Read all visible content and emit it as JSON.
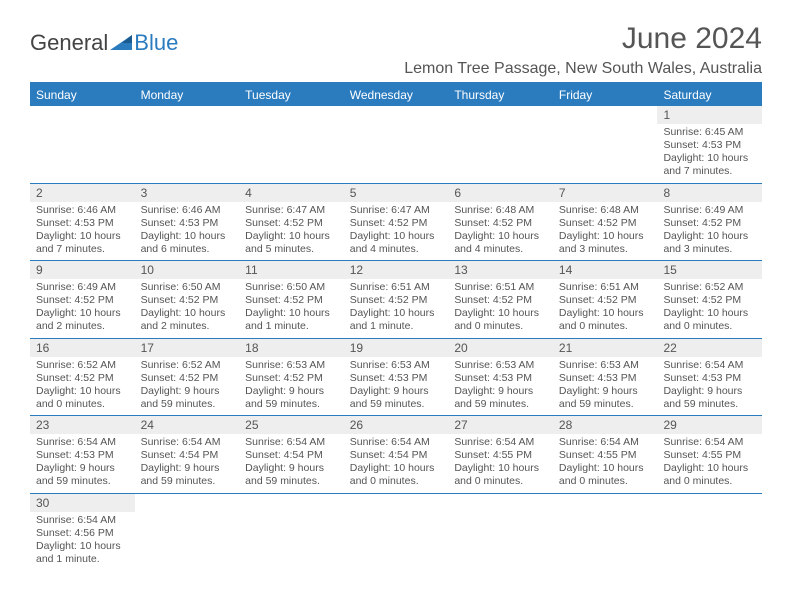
{
  "brand": {
    "part1": "General",
    "part2": "Blue",
    "logo_color": "#2b7bbf",
    "text_color": "#444444"
  },
  "title": "June 2024",
  "location": "Lemon Tree Passage, New South Wales, Australia",
  "colors": {
    "header_bg": "#2b7bbf",
    "header_text": "#ffffff",
    "daynum_bg": "#eeeeee",
    "body_text": "#555555",
    "rule": "#2b7bbf"
  },
  "weekdays": [
    "Sunday",
    "Monday",
    "Tuesday",
    "Wednesday",
    "Thursday",
    "Friday",
    "Saturday"
  ],
  "weeks": [
    [
      {
        "n": "",
        "sr": "",
        "ss": "",
        "dl1": "",
        "dl2": ""
      },
      {
        "n": "",
        "sr": "",
        "ss": "",
        "dl1": "",
        "dl2": ""
      },
      {
        "n": "",
        "sr": "",
        "ss": "",
        "dl1": "",
        "dl2": ""
      },
      {
        "n": "",
        "sr": "",
        "ss": "",
        "dl1": "",
        "dl2": ""
      },
      {
        "n": "",
        "sr": "",
        "ss": "",
        "dl1": "",
        "dl2": ""
      },
      {
        "n": "",
        "sr": "",
        "ss": "",
        "dl1": "",
        "dl2": ""
      },
      {
        "n": "1",
        "sr": "Sunrise: 6:45 AM",
        "ss": "Sunset: 4:53 PM",
        "dl1": "Daylight: 10 hours",
        "dl2": "and 7 minutes."
      }
    ],
    [
      {
        "n": "2",
        "sr": "Sunrise: 6:46 AM",
        "ss": "Sunset: 4:53 PM",
        "dl1": "Daylight: 10 hours",
        "dl2": "and 7 minutes."
      },
      {
        "n": "3",
        "sr": "Sunrise: 6:46 AM",
        "ss": "Sunset: 4:53 PM",
        "dl1": "Daylight: 10 hours",
        "dl2": "and 6 minutes."
      },
      {
        "n": "4",
        "sr": "Sunrise: 6:47 AM",
        "ss": "Sunset: 4:52 PM",
        "dl1": "Daylight: 10 hours",
        "dl2": "and 5 minutes."
      },
      {
        "n": "5",
        "sr": "Sunrise: 6:47 AM",
        "ss": "Sunset: 4:52 PM",
        "dl1": "Daylight: 10 hours",
        "dl2": "and 4 minutes."
      },
      {
        "n": "6",
        "sr": "Sunrise: 6:48 AM",
        "ss": "Sunset: 4:52 PM",
        "dl1": "Daylight: 10 hours",
        "dl2": "and 4 minutes."
      },
      {
        "n": "7",
        "sr": "Sunrise: 6:48 AM",
        "ss": "Sunset: 4:52 PM",
        "dl1": "Daylight: 10 hours",
        "dl2": "and 3 minutes."
      },
      {
        "n": "8",
        "sr": "Sunrise: 6:49 AM",
        "ss": "Sunset: 4:52 PM",
        "dl1": "Daylight: 10 hours",
        "dl2": "and 3 minutes."
      }
    ],
    [
      {
        "n": "9",
        "sr": "Sunrise: 6:49 AM",
        "ss": "Sunset: 4:52 PM",
        "dl1": "Daylight: 10 hours",
        "dl2": "and 2 minutes."
      },
      {
        "n": "10",
        "sr": "Sunrise: 6:50 AM",
        "ss": "Sunset: 4:52 PM",
        "dl1": "Daylight: 10 hours",
        "dl2": "and 2 minutes."
      },
      {
        "n": "11",
        "sr": "Sunrise: 6:50 AM",
        "ss": "Sunset: 4:52 PM",
        "dl1": "Daylight: 10 hours",
        "dl2": "and 1 minute."
      },
      {
        "n": "12",
        "sr": "Sunrise: 6:51 AM",
        "ss": "Sunset: 4:52 PM",
        "dl1": "Daylight: 10 hours",
        "dl2": "and 1 minute."
      },
      {
        "n": "13",
        "sr": "Sunrise: 6:51 AM",
        "ss": "Sunset: 4:52 PM",
        "dl1": "Daylight: 10 hours",
        "dl2": "and 0 minutes."
      },
      {
        "n": "14",
        "sr": "Sunrise: 6:51 AM",
        "ss": "Sunset: 4:52 PM",
        "dl1": "Daylight: 10 hours",
        "dl2": "and 0 minutes."
      },
      {
        "n": "15",
        "sr": "Sunrise: 6:52 AM",
        "ss": "Sunset: 4:52 PM",
        "dl1": "Daylight: 10 hours",
        "dl2": "and 0 minutes."
      }
    ],
    [
      {
        "n": "16",
        "sr": "Sunrise: 6:52 AM",
        "ss": "Sunset: 4:52 PM",
        "dl1": "Daylight: 10 hours",
        "dl2": "and 0 minutes."
      },
      {
        "n": "17",
        "sr": "Sunrise: 6:52 AM",
        "ss": "Sunset: 4:52 PM",
        "dl1": "Daylight: 9 hours",
        "dl2": "and 59 minutes."
      },
      {
        "n": "18",
        "sr": "Sunrise: 6:53 AM",
        "ss": "Sunset: 4:52 PM",
        "dl1": "Daylight: 9 hours",
        "dl2": "and 59 minutes."
      },
      {
        "n": "19",
        "sr": "Sunrise: 6:53 AM",
        "ss": "Sunset: 4:53 PM",
        "dl1": "Daylight: 9 hours",
        "dl2": "and 59 minutes."
      },
      {
        "n": "20",
        "sr": "Sunrise: 6:53 AM",
        "ss": "Sunset: 4:53 PM",
        "dl1": "Daylight: 9 hours",
        "dl2": "and 59 minutes."
      },
      {
        "n": "21",
        "sr": "Sunrise: 6:53 AM",
        "ss": "Sunset: 4:53 PM",
        "dl1": "Daylight: 9 hours",
        "dl2": "and 59 minutes."
      },
      {
        "n": "22",
        "sr": "Sunrise: 6:54 AM",
        "ss": "Sunset: 4:53 PM",
        "dl1": "Daylight: 9 hours",
        "dl2": "and 59 minutes."
      }
    ],
    [
      {
        "n": "23",
        "sr": "Sunrise: 6:54 AM",
        "ss": "Sunset: 4:53 PM",
        "dl1": "Daylight: 9 hours",
        "dl2": "and 59 minutes."
      },
      {
        "n": "24",
        "sr": "Sunrise: 6:54 AM",
        "ss": "Sunset: 4:54 PM",
        "dl1": "Daylight: 9 hours",
        "dl2": "and 59 minutes."
      },
      {
        "n": "25",
        "sr": "Sunrise: 6:54 AM",
        "ss": "Sunset: 4:54 PM",
        "dl1": "Daylight: 9 hours",
        "dl2": "and 59 minutes."
      },
      {
        "n": "26",
        "sr": "Sunrise: 6:54 AM",
        "ss": "Sunset: 4:54 PM",
        "dl1": "Daylight: 10 hours",
        "dl2": "and 0 minutes."
      },
      {
        "n": "27",
        "sr": "Sunrise: 6:54 AM",
        "ss": "Sunset: 4:55 PM",
        "dl1": "Daylight: 10 hours",
        "dl2": "and 0 minutes."
      },
      {
        "n": "28",
        "sr": "Sunrise: 6:54 AM",
        "ss": "Sunset: 4:55 PM",
        "dl1": "Daylight: 10 hours",
        "dl2": "and 0 minutes."
      },
      {
        "n": "29",
        "sr": "Sunrise: 6:54 AM",
        "ss": "Sunset: 4:55 PM",
        "dl1": "Daylight: 10 hours",
        "dl2": "and 0 minutes."
      }
    ],
    [
      {
        "n": "30",
        "sr": "Sunrise: 6:54 AM",
        "ss": "Sunset: 4:56 PM",
        "dl1": "Daylight: 10 hours",
        "dl2": "and 1 minute."
      },
      {
        "n": "",
        "sr": "",
        "ss": "",
        "dl1": "",
        "dl2": ""
      },
      {
        "n": "",
        "sr": "",
        "ss": "",
        "dl1": "",
        "dl2": ""
      },
      {
        "n": "",
        "sr": "",
        "ss": "",
        "dl1": "",
        "dl2": ""
      },
      {
        "n": "",
        "sr": "",
        "ss": "",
        "dl1": "",
        "dl2": ""
      },
      {
        "n": "",
        "sr": "",
        "ss": "",
        "dl1": "",
        "dl2": ""
      },
      {
        "n": "",
        "sr": "",
        "ss": "",
        "dl1": "",
        "dl2": ""
      }
    ]
  ]
}
